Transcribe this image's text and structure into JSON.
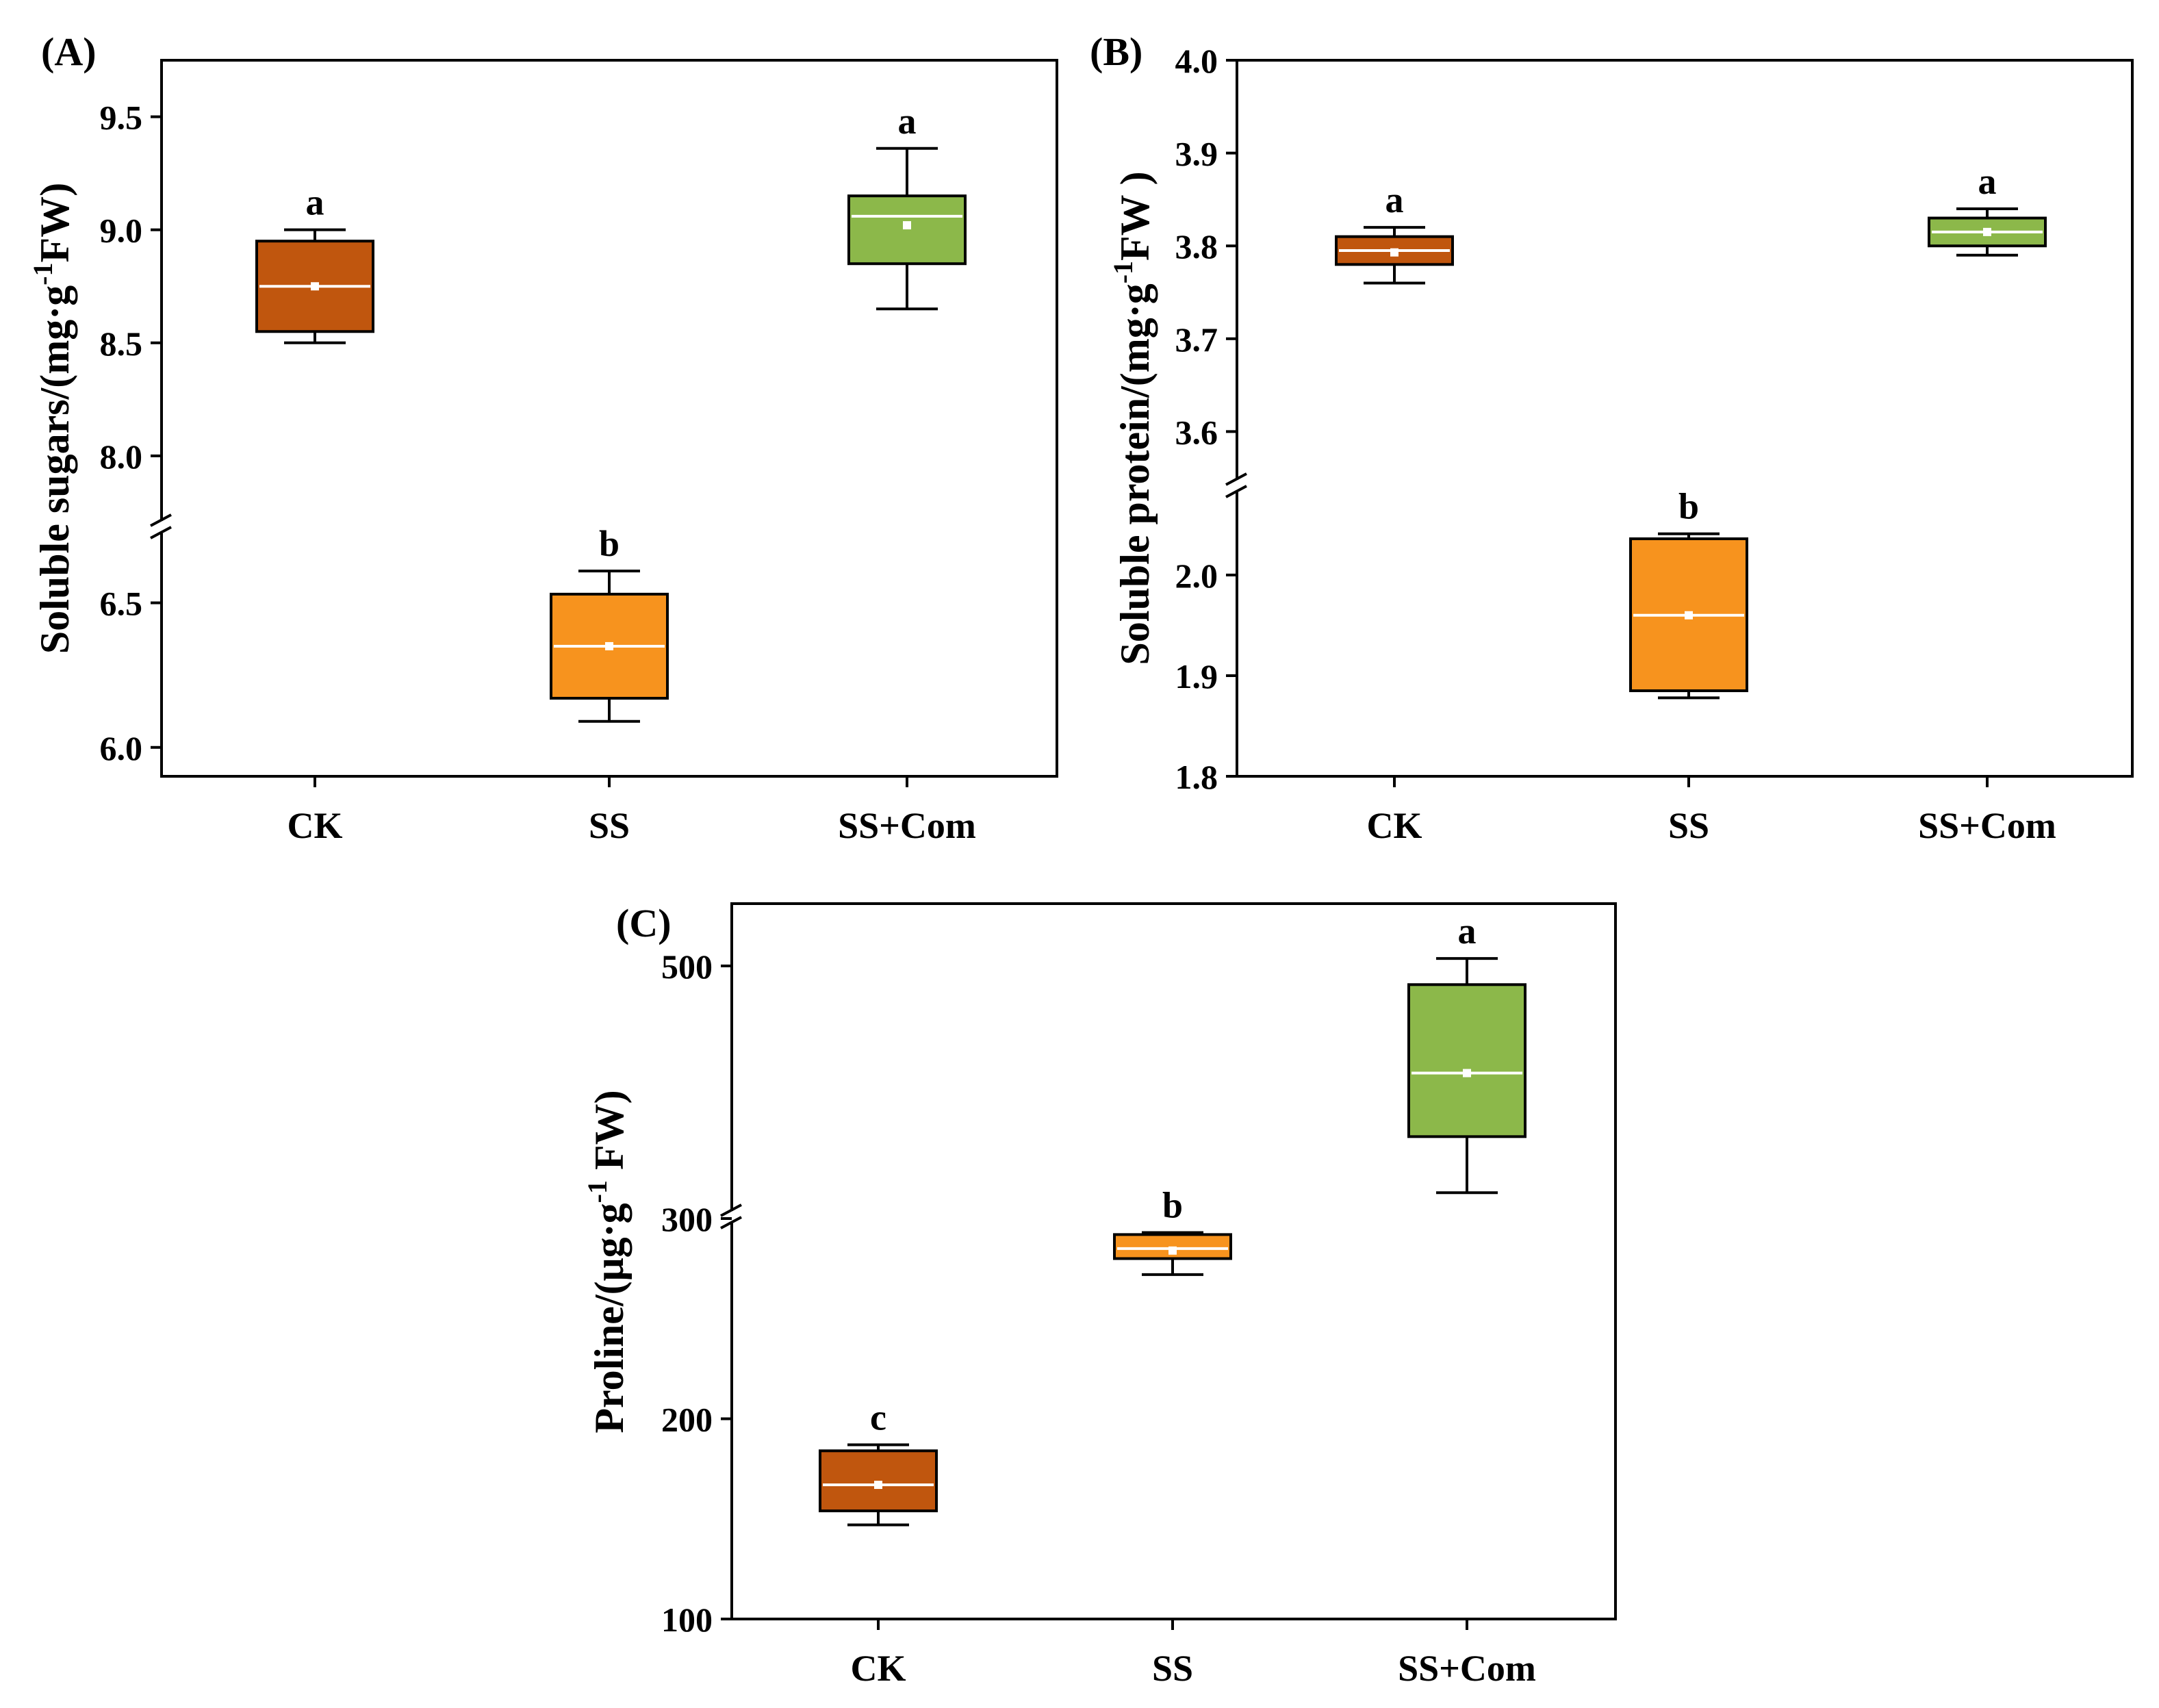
{
  "chart_data": [
    {
      "panel_label": "(A)",
      "type": "box",
      "ylabel": "Soluble sugars/(mg·g",
      "ylabel_sup": "-1",
      "ylabel_tail": "FW)",
      "categories": [
        "CK",
        "SS",
        "SS+Com"
      ],
      "ticks": [
        "6.0",
        "6.5",
        "8.0",
        "8.5",
        "9.0",
        "9.5"
      ],
      "segments": [
        {
          "ylim": [
            5.9,
            6.75
          ],
          "ticks": [
            6.0,
            6.5
          ]
        },
        {
          "ylim": [
            7.7,
            9.75
          ],
          "ticks": [
            8.0,
            8.5,
            9.0,
            9.5
          ]
        }
      ],
      "boxes": [
        {
          "name": "CK",
          "color": "#c0560e",
          "min": 8.5,
          "q1": 8.55,
          "median": 8.75,
          "mean": 8.75,
          "q3": 8.95,
          "max": 9.0,
          "letter": "a"
        },
        {
          "name": "SS",
          "color": "#f7931e",
          "min": 6.09,
          "q1": 6.17,
          "median": 6.35,
          "mean": 6.35,
          "q3": 6.53,
          "max": 6.61,
          "letter": "b"
        },
        {
          "name": "SS+Com",
          "color": "#8cb84a",
          "min": 8.65,
          "q1": 8.85,
          "median": 9.06,
          "mean": 9.02,
          "q3": 9.15,
          "max": 9.36,
          "letter": "a"
        }
      ]
    },
    {
      "panel_label": "(B)",
      "type": "box",
      "ylabel": "Soluble protein/(mg·g",
      "ylabel_sup": "-1",
      "ylabel_tail": "FW )",
      "categories": [
        "CK",
        "SS",
        "SS+Com"
      ],
      "ticks": [
        "1.8",
        "1.9",
        "2.0",
        "3.6",
        "3.7",
        "3.8",
        "3.9",
        "4.0"
      ],
      "segments": [
        {
          "ylim": [
            1.8,
            2.085
          ],
          "ticks": [
            1.8,
            1.9,
            2.0
          ]
        },
        {
          "ylim": [
            3.545,
            4.0
          ],
          "ticks": [
            3.6,
            3.7,
            3.8,
            3.9,
            4.0
          ]
        }
      ],
      "boxes": [
        {
          "name": "CK",
          "color": "#c0560e",
          "min": 3.76,
          "q1": 3.78,
          "median": 3.795,
          "mean": 3.793,
          "q3": 3.81,
          "max": 3.82,
          "letter": "a"
        },
        {
          "name": "SS",
          "color": "#f7931e",
          "min": 1.878,
          "q1": 1.885,
          "median": 1.96,
          "mean": 1.96,
          "q3": 2.036,
          "max": 2.041,
          "letter": "b"
        },
        {
          "name": "SS+Com",
          "color": "#8cb84a",
          "min": 3.79,
          "q1": 3.8,
          "median": 3.815,
          "mean": 3.815,
          "q3": 3.83,
          "max": 3.84,
          "letter": "a"
        }
      ]
    },
    {
      "panel_label": "(C)",
      "type": "box",
      "ylabel": "Proline/(μg·g",
      "ylabel_sup": "-1",
      "ylabel_tail": " FW)",
      "categories": [
        "CK",
        "SS",
        "SS+Com"
      ],
      "ticks": [
        "100",
        "200",
        "300",
        "500"
      ],
      "segments": [
        {
          "ylim": [
            100,
            300
          ],
          "ticks": [
            100,
            200,
            300
          ]
        },
        {
          "ylim": [
            300,
            550
          ],
          "ticks": [
            500
          ]
        }
      ],
      "boxes": [
        {
          "name": "CK",
          "color": "#c0560e",
          "min": 147,
          "q1": 154,
          "median": 167,
          "mean": 167,
          "q3": 184,
          "max": 187,
          "letter": "c"
        },
        {
          "name": "SS",
          "color": "#f7931e",
          "min": 272,
          "q1": 280,
          "median": 285,
          "mean": 284,
          "q3": 292,
          "max": 293,
          "letter": "b"
        },
        {
          "name": "SS+Com",
          "color": "#8cb84a",
          "min": 318,
          "q1": 363,
          "median": 414,
          "mean": 414,
          "q3": 485,
          "max": 506,
          "letter": "a"
        }
      ]
    }
  ]
}
